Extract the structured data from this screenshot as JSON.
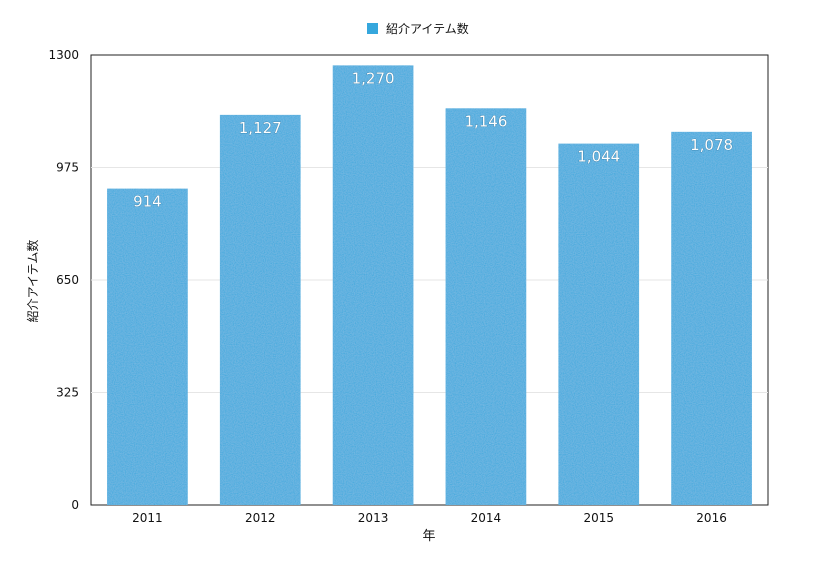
{
  "chart_data": {
    "type": "bar",
    "legend": {
      "position": "top",
      "entries": [
        {
          "label": "紹介アイテム数",
          "color": "#35a7dd"
        }
      ]
    },
    "xlabel": "年",
    "ylabel": "紹介アイテム数",
    "categories": [
      "2011",
      "2012",
      "2013",
      "2014",
      "2015",
      "2016"
    ],
    "series": [
      {
        "name": "紹介アイテム数",
        "color": "#35a7dd",
        "values": [
          914,
          1127,
          1270,
          1146,
          1044,
          1078
        ],
        "labels": [
          "914",
          "1,127",
          "1,270",
          "1,146",
          "1,044",
          "1,078"
        ]
      }
    ],
    "ylim": [
      0,
      1300
    ],
    "yticks": [
      0,
      325,
      650,
      975,
      1300
    ],
    "ytick_labels": [
      "0",
      "325",
      "650",
      "975",
      "1300"
    ],
    "grid": true
  }
}
